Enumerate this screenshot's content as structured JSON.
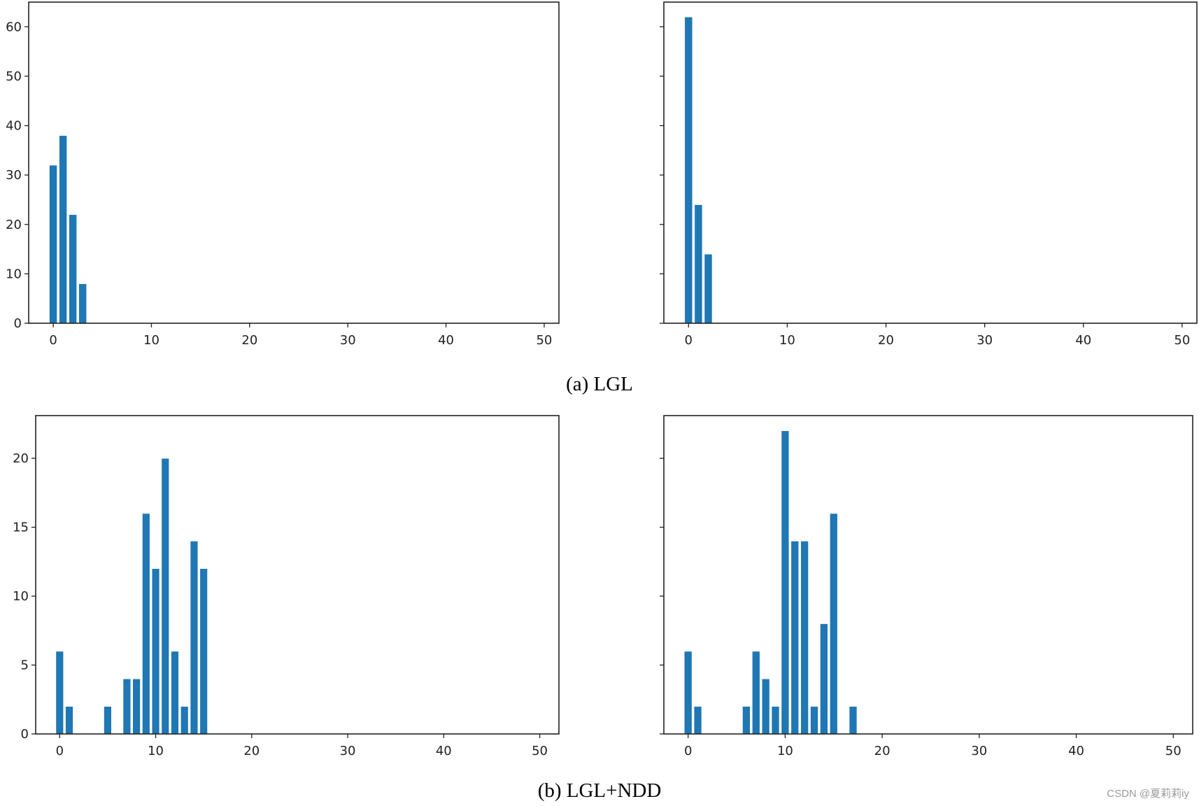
{
  "figure": {
    "caption_a": "(a) LGL",
    "caption_b": "(b) LGL+NDD",
    "watermark": "CSDN @夏莉莉iy",
    "bar_color": "#1f77b4"
  },
  "chart_data": [
    {
      "type": "bar",
      "panel": "(a) LGL - left",
      "title": "",
      "xlabel": "",
      "ylabel": "",
      "x": [
        0,
        1,
        2,
        3
      ],
      "values": [
        32,
        38,
        22,
        8
      ],
      "xlim": [
        -2.5,
        51.5
      ],
      "ylim": [
        0,
        65
      ],
      "xticks": [
        0,
        10,
        20,
        30,
        40,
        50
      ],
      "yticks": [
        0,
        10,
        20,
        30,
        40,
        50,
        60
      ],
      "show_ytick_labels": true,
      "grid": false
    },
    {
      "type": "bar",
      "panel": "(a) LGL - right",
      "title": "",
      "xlabel": "",
      "ylabel": "",
      "x": [
        0,
        1,
        2
      ],
      "values": [
        62,
        24,
        14
      ],
      "xlim": [
        -2.5,
        51.5
      ],
      "ylim": [
        0,
        65
      ],
      "xticks": [
        0,
        10,
        20,
        30,
        40,
        50
      ],
      "yticks": [
        0,
        10,
        20,
        30,
        40,
        50,
        60
      ],
      "show_ytick_labels": false,
      "grid": false
    },
    {
      "type": "bar",
      "panel": "(b) LGL+NDD - left",
      "title": "",
      "xlabel": "",
      "ylabel": "",
      "x": [
        0,
        1,
        5,
        7,
        8,
        9,
        10,
        11,
        12,
        13,
        14,
        15
      ],
      "values": [
        6,
        2,
        2,
        4,
        4,
        16,
        12,
        20,
        6,
        2,
        14,
        12
      ],
      "xlim": [
        -2.5,
        52
      ],
      "ylim": [
        0,
        23.1
      ],
      "xticks": [
        0,
        10,
        20,
        30,
        40,
        50
      ],
      "yticks": [
        0,
        5,
        10,
        15,
        20
      ],
      "show_ytick_labels": true,
      "grid": false
    },
    {
      "type": "bar",
      "panel": "(b) LGL+NDD - right",
      "title": "",
      "xlabel": "",
      "ylabel": "",
      "x": [
        0,
        1,
        6,
        7,
        8,
        9,
        10,
        11,
        12,
        13,
        14,
        15,
        17
      ],
      "values": [
        6,
        2,
        2,
        6,
        4,
        2,
        22,
        14,
        14,
        2,
        8,
        16,
        2
      ],
      "xlim": [
        -2.5,
        52
      ],
      "ylim": [
        0,
        23.1
      ],
      "xticks": [
        0,
        10,
        20,
        30,
        40,
        50
      ],
      "yticks": [
        0,
        5,
        10,
        15,
        20
      ],
      "show_ytick_labels": false,
      "grid": false
    }
  ]
}
